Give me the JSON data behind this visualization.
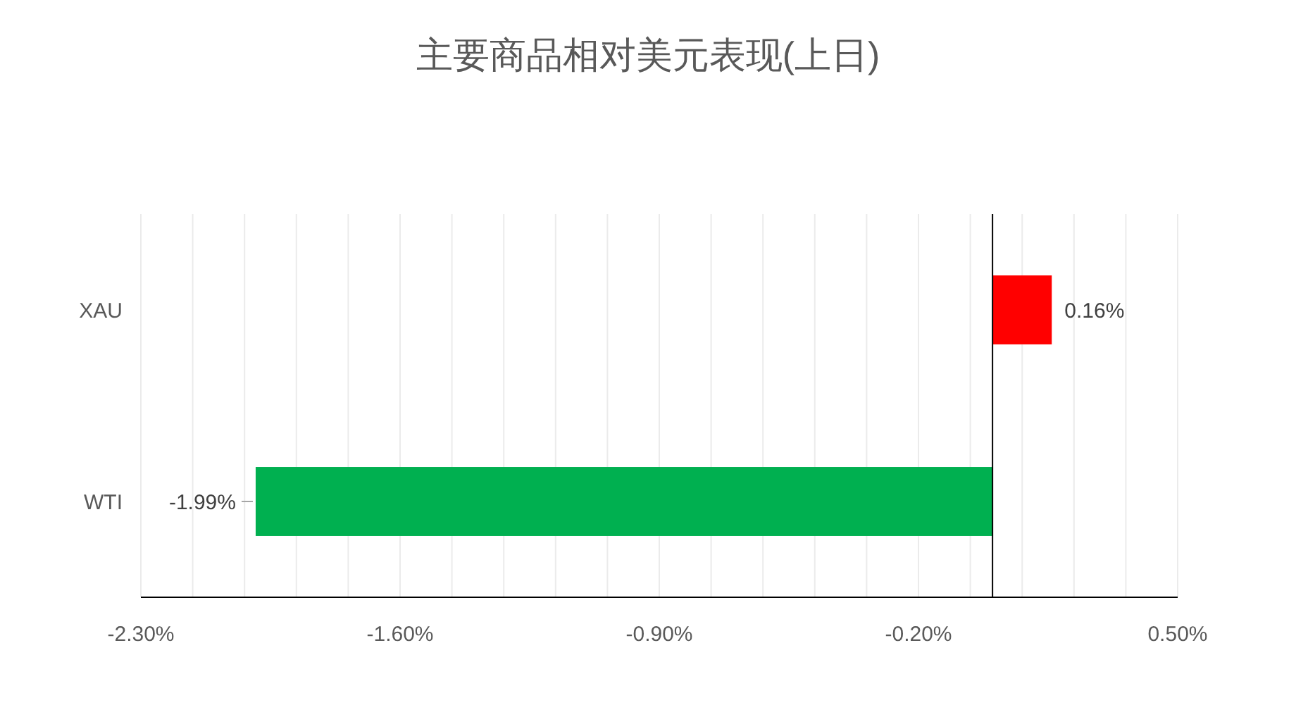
{
  "chart_data": {
    "type": "bar",
    "orientation": "horizontal",
    "title": "主要商品相对美元表现(上日)",
    "categories": [
      "XAU",
      "WTI"
    ],
    "values": [
      0.16,
      -1.99
    ],
    "colors": [
      "#ff0000",
      "#00b050"
    ],
    "value_labels": [
      "0.16%",
      "-1.99%"
    ],
    "xlim": [
      -2.3,
      0.5
    ],
    "xticks": [
      {
        "value": -2.3,
        "label": "-2.30%"
      },
      {
        "value": -2.16,
        "label": null
      },
      {
        "value": -2.02,
        "label": null
      },
      {
        "value": -1.88,
        "label": null
      },
      {
        "value": -1.74,
        "label": null
      },
      {
        "value": -1.6,
        "label": "-1.60%"
      },
      {
        "value": -1.46,
        "label": null
      },
      {
        "value": -1.32,
        "label": null
      },
      {
        "value": -1.18,
        "label": null
      },
      {
        "value": -1.04,
        "label": null
      },
      {
        "value": -0.9,
        "label": "-0.90%"
      },
      {
        "value": -0.76,
        "label": null
      },
      {
        "value": -0.62,
        "label": null
      },
      {
        "value": -0.48,
        "label": null
      },
      {
        "value": -0.34,
        "label": null
      },
      {
        "value": -0.2,
        "label": "-0.20%"
      },
      {
        "value": -0.06,
        "label": null
      },
      {
        "value": 0.08,
        "label": null
      },
      {
        "value": 0.22,
        "label": null
      },
      {
        "value": 0.36,
        "label": null
      },
      {
        "value": 0.5,
        "label": "0.50%"
      }
    ],
    "grid": "x"
  }
}
